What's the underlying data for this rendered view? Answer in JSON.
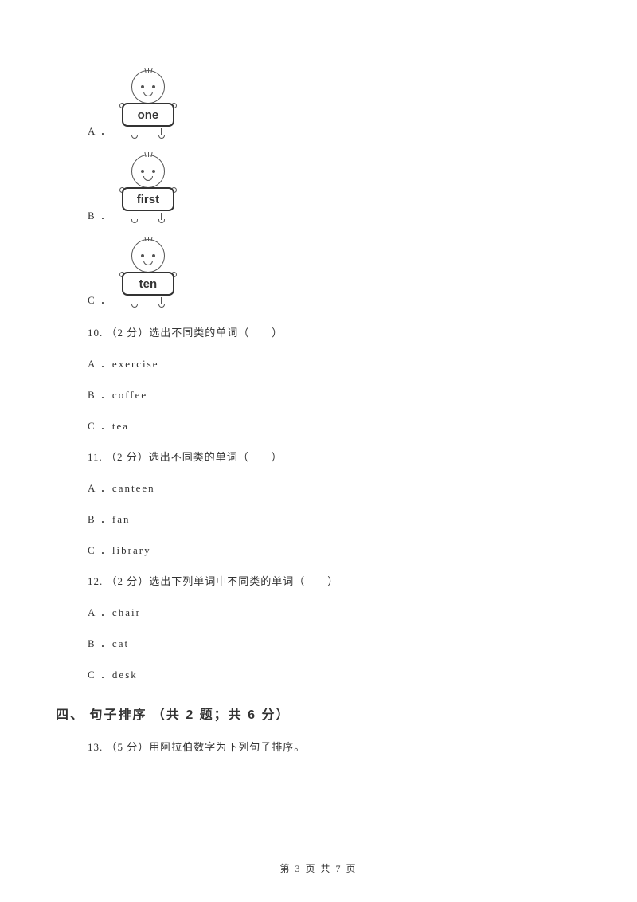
{
  "options_with_images": [
    {
      "label": "A ．",
      "sign_text": "one"
    },
    {
      "label": "B ．",
      "sign_text": "first"
    },
    {
      "label": "C ．",
      "sign_text": "ten"
    }
  ],
  "questions": [
    {
      "number_line": "10. （2 分）选出不同类的单词（　　）",
      "opts": [
        {
          "text": "A ．exercise"
        },
        {
          "text": "B ．coffee"
        },
        {
          "text": "C ．tea"
        }
      ]
    },
    {
      "number_line": "11. （2 分）选出不同类的单词（　　）",
      "opts": [
        {
          "text": "A ．canteen"
        },
        {
          "text": "B ．fan"
        },
        {
          "text": "C ．library"
        }
      ]
    },
    {
      "number_line": "12. （2 分）选出下列单词中不同类的单词（　　）",
      "opts": [
        {
          "text": "A ．chair"
        },
        {
          "text": "B ．cat"
        },
        {
          "text": "C ．desk"
        }
      ]
    }
  ],
  "section_heading": "四、 句子排序 （共 2 题；共 6 分）",
  "q13_line": "13. （5 分）用阿拉伯数字为下列句子排序。",
  "footer_text": "第 3 页 共 7 页",
  "colors": {
    "text": "#333333",
    "background": "#ffffff",
    "stroke": "#555555"
  }
}
